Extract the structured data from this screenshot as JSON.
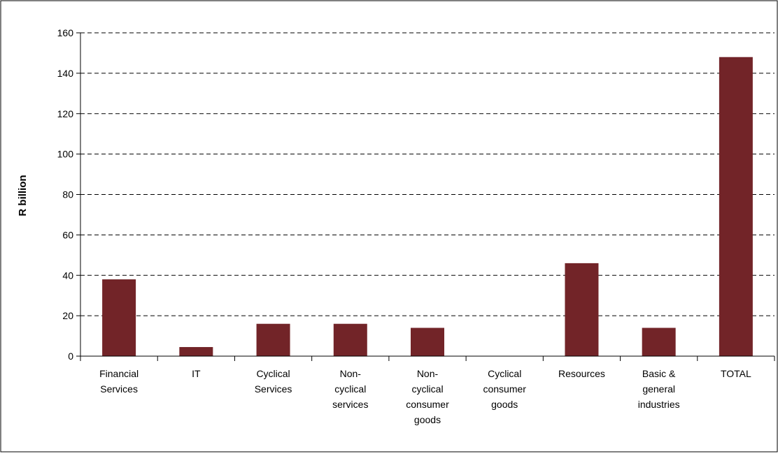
{
  "chart_data": {
    "type": "bar",
    "title": "",
    "xlabel": "",
    "ylabel": "R billion",
    "ylim": [
      0,
      160
    ],
    "yticks": [
      0,
      20,
      40,
      60,
      80,
      100,
      120,
      140,
      160
    ],
    "grid": true,
    "legend": "none",
    "bar_color": "#722428",
    "categories": [
      [
        "Financial",
        "Services"
      ],
      [
        "IT"
      ],
      [
        "Cyclical",
        "Services"
      ],
      [
        "Non-",
        "cyclical",
        "services"
      ],
      [
        "Non-",
        "cyclical",
        "consumer",
        "goods"
      ],
      [
        "Cyclical",
        "consumer",
        "goods"
      ],
      [
        "Resources"
      ],
      [
        "Basic &",
        "general",
        "industries"
      ],
      [
        "TOTAL"
      ]
    ],
    "values": [
      38,
      4.5,
      16,
      16,
      14,
      0,
      46,
      14,
      148
    ]
  }
}
